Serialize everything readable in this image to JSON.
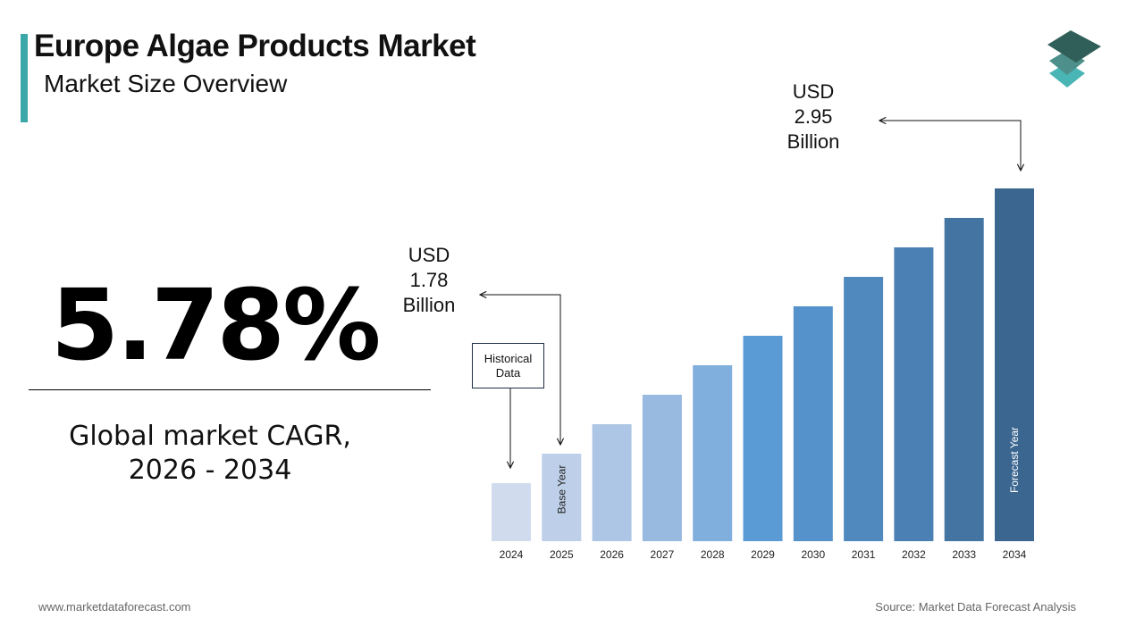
{
  "header": {
    "title": "Europe Algae Products Market",
    "subtitle": "Market Size Overview"
  },
  "logo": {
    "icon": "stacked-layers-logo",
    "colors": [
      "#2f5f58",
      "#4d8f8a",
      "#49b5b5"
    ]
  },
  "cagr": {
    "value": "5.78%",
    "label_line1": "Global market CAGR,",
    "label_line2": "2026 - 2034"
  },
  "callouts": {
    "base": {
      "line1": "USD",
      "line2": "1.78",
      "line3": "Billion"
    },
    "forecast": {
      "line1": "USD",
      "line2": "2.95",
      "line3": "Billion"
    },
    "historical": {
      "line1": "Historical",
      "line2": "Data"
    }
  },
  "footer": {
    "website": "www.marketdataforecast.com",
    "source": "Source: Market Data Forecast Analysis"
  },
  "chart_data": {
    "type": "bar",
    "categories": [
      "2024",
      "2025",
      "2026",
      "2027",
      "2028",
      "2029",
      "2030",
      "2031",
      "2032",
      "2033",
      "2034"
    ],
    "values": [
      null,
      1.78,
      null,
      null,
      null,
      null,
      null,
      null,
      null,
      null,
      2.95
    ],
    "unit": "USD Billion",
    "bar_labels": {
      "2025": "Base Year",
      "2034": "Forecast Year"
    },
    "colors": [
      "#d0dcee",
      "#bed0e9",
      "#adc6e5",
      "#98b9e0",
      "#80aedd",
      "#5b9bd5",
      "#5592cb",
      "#5089be",
      "#4a80b3",
      "#4374a2",
      "#3b6690"
    ],
    "grid": false,
    "legend": "none",
    "xlabel": "",
    "ylabel": ""
  }
}
